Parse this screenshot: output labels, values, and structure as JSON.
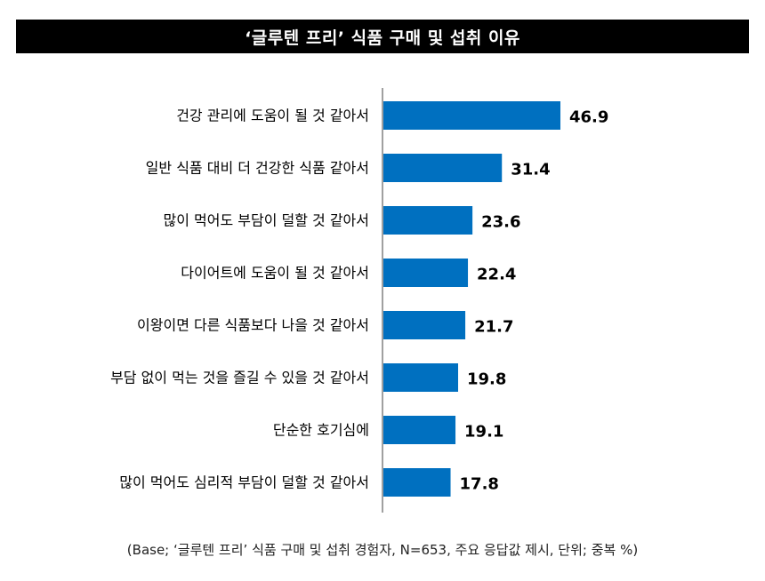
{
  "header": {
    "title": "‘글루텐 프리’ 식품 구매 및 섭취 이유"
  },
  "footnote": "(Base; ‘글루텐 프리’ 식품 구매 및 섭취 경험자, N=653, 주요 응답값 제시, 단위; 중복 %)",
  "colors": {
    "bar": "#0070C0",
    "axis": "#808080",
    "text": "#000000"
  },
  "chart_data": {
    "type": "bar",
    "orientation": "horizontal",
    "categories": [
      "건강 관리에 도움이 될 것 같아서",
      "일반 식품 대비 더 건강한 식품 같아서",
      "많이 먹어도 부담이 덜할 것 같아서",
      "다이어트에 도움이 될 것 같아서",
      "이왕이면 다른 식품보다 나을 것 같아서",
      "부담 없이 먹는 것을 즐길 수 있을 것 같아서",
      "단순한 호기심에",
      "많이 먹어도 심리적 부담이 덜할 것 같아서"
    ],
    "values": [
      46.9,
      31.4,
      23.6,
      22.4,
      21.7,
      19.8,
      19.1,
      17.8
    ],
    "value_labels": [
      "46.9",
      "31.4",
      "23.6",
      "22.4",
      "21.7",
      "19.8",
      "19.1",
      "17.8"
    ],
    "xlim": [
      0,
      100
    ],
    "grid": false,
    "legend": "none"
  }
}
